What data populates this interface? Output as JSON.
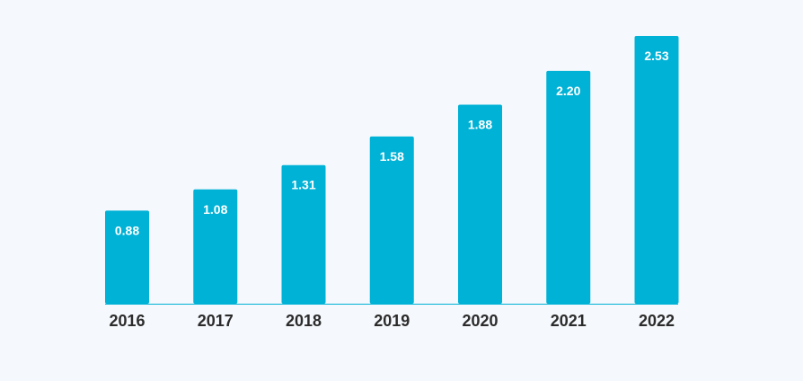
{
  "colors": {
    "background": "#f5f8fc",
    "bar": "#00b2d6",
    "axis": "#00b2d6",
    "bar_label": "#ffffff",
    "tick_label": "#2b2b2b"
  },
  "chart_data": {
    "type": "bar",
    "categories": [
      "2016",
      "2017",
      "2018",
      "2019",
      "2020",
      "2021",
      "2022"
    ],
    "values": [
      0.88,
      1.08,
      1.31,
      1.58,
      1.88,
      2.2,
      2.53
    ],
    "value_labels": [
      "0.88",
      "1.08",
      "1.31",
      "1.58",
      "1.88",
      "2.20",
      "2.53"
    ],
    "title": "",
    "xlabel": "",
    "ylabel": "",
    "ylim": [
      0,
      2.53
    ],
    "grid": false,
    "legend": "none"
  }
}
